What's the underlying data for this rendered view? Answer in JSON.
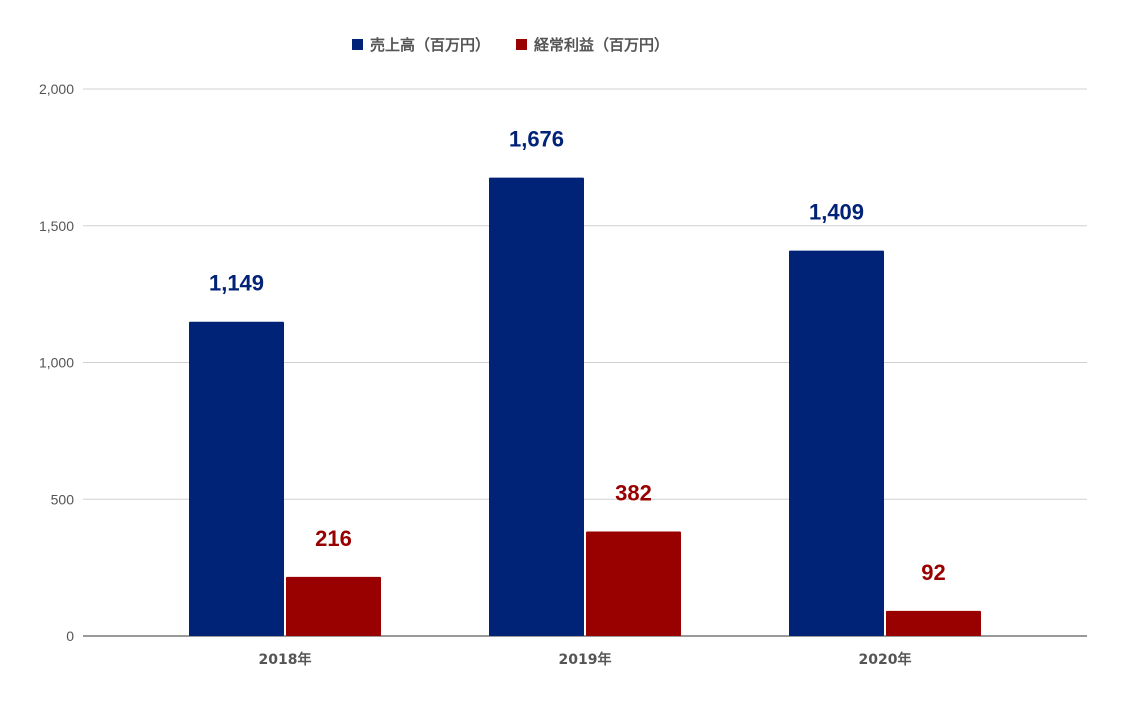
{
  "chart_data": {
    "type": "bar",
    "categories": [
      "2018年",
      "2019年",
      "2020年"
    ],
    "series": [
      {
        "name": "売上高（百万円）",
        "color": "#002277",
        "values": [
          1149,
          1676,
          1409
        ],
        "labels": [
          "1,149",
          "1,676",
          "1,409"
        ]
      },
      {
        "name": "経常利益（百万円）",
        "color": "#990000",
        "values": [
          216,
          382,
          92
        ],
        "labels": [
          "216",
          "382",
          "92"
        ]
      }
    ],
    "ylim": [
      0,
      2000
    ],
    "yticks": [
      0,
      500,
      1000,
      1500,
      2000
    ],
    "ytick_labels": [
      "0",
      "500",
      "1,000",
      "1,500",
      "2,000"
    ],
    "grid": true,
    "legend_position": "top-center",
    "title": "",
    "xlabel": "",
    "ylabel": ""
  }
}
